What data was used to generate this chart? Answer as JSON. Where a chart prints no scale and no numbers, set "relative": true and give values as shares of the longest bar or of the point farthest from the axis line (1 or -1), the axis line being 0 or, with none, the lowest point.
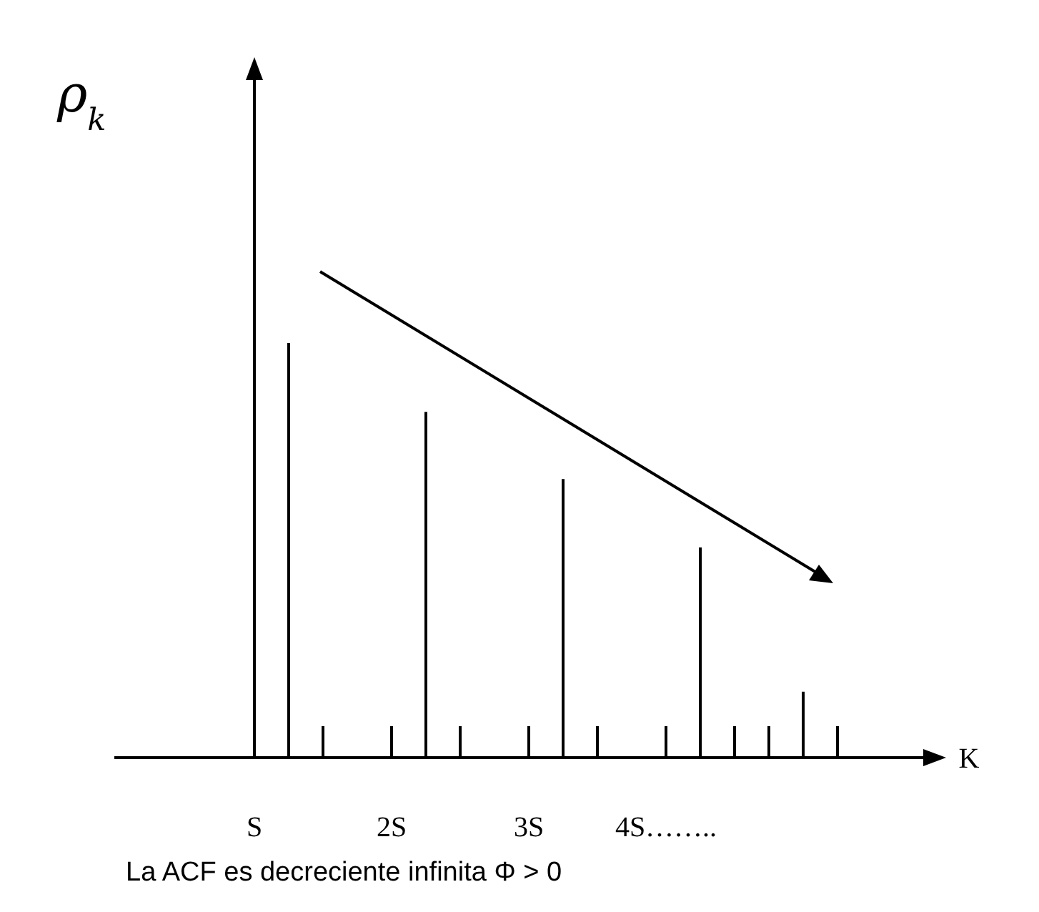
{
  "chart_data": {
    "type": "bar",
    "relative": true,
    "color": "#000000",
    "ylabel": "ρ$_{k}$",
    "xlabel": "K",
    "categories": [
      "S",
      null,
      null,
      null,
      "2S",
      null,
      null,
      null,
      "3S",
      null,
      null,
      null,
      "4S……..",
      null,
      null,
      null,
      null,
      null
    ],
    "values": [
      null,
      1,
      0.076,
      null,
      0.076,
      0.834,
      0.076,
      null,
      0.076,
      0.672,
      0.076,
      null,
      0.076,
      0.507,
      0.076,
      0.076,
      0.159,
      0.076
    ],
    "annotations": [
      "La ACF es decreciente infinita Φ > 0"
    ]
  }
}
